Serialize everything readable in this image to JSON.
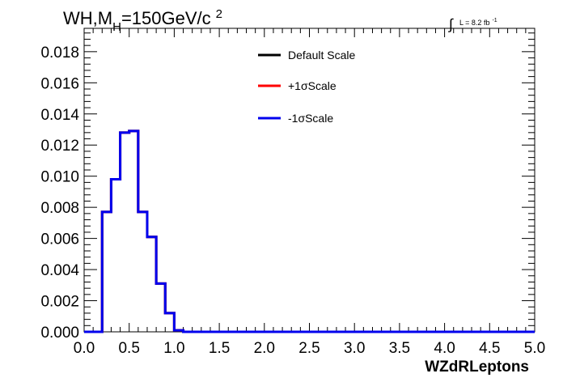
{
  "chart_data": {
    "type": "line",
    "title": {
      "main": "WH,M",
      "sub": "H",
      "rest": "=150GeV/c",
      "sup": "2"
    },
    "lumi": {
      "integral": "∫",
      "text": "L = 8.2 fb",
      "sup": "-1"
    },
    "xlabel": "WZdRLeptons",
    "ylabel": "",
    "xlim": [
      0.0,
      5.0
    ],
    "ylim": [
      0.0,
      0.0195
    ],
    "x_ticks": [
      "0.0",
      "0.5",
      "1.0",
      "1.5",
      "2.0",
      "2.5",
      "3.0",
      "3.5",
      "4.0",
      "4.5",
      "5.0"
    ],
    "y_ticks": [
      "0.000",
      "0.002",
      "0.004",
      "0.006",
      "0.008",
      "0.010",
      "0.012",
      "0.014",
      "0.016",
      "0.018"
    ],
    "grid": false,
    "legend_position": "top-center",
    "bin_width": 0.1,
    "bin_edges_start": 0.0,
    "series": [
      {
        "name": "Default Scale",
        "color": "#000000",
        "values": [
          0,
          0,
          0.0077,
          0.0098,
          0.0128,
          0.0129,
          0.0077,
          0.0061,
          0.0031,
          0.0012,
          0.0001,
          0,
          0,
          0,
          0,
          0,
          0,
          0,
          0,
          0,
          0,
          0,
          0,
          0,
          0,
          0,
          0,
          0,
          0,
          0,
          0,
          0,
          0,
          0,
          0,
          0,
          0,
          0,
          0,
          0,
          0,
          0,
          0,
          0,
          0,
          0,
          0,
          0,
          0,
          0
        ]
      },
      {
        "name": "+1σScale",
        "color": "#ff0000",
        "values": [
          0,
          0,
          0.0077,
          0.0098,
          0.0128,
          0.0129,
          0.0077,
          0.0061,
          0.0031,
          0.0012,
          0.0001,
          0,
          0,
          0,
          0,
          0,
          0,
          0,
          0,
          0,
          0,
          0,
          0,
          0,
          0,
          0,
          0,
          0,
          0,
          0,
          0,
          0,
          0,
          0,
          0,
          0,
          0,
          0,
          0,
          0,
          0,
          0,
          0,
          0,
          0,
          0,
          0,
          0,
          0,
          0
        ]
      },
      {
        "name": "-1σScale",
        "color": "#0000ee",
        "values": [
          0,
          0,
          0.0077,
          0.0098,
          0.0128,
          0.0129,
          0.0077,
          0.0061,
          0.0031,
          0.0012,
          0.0001,
          0,
          0,
          0,
          0,
          0,
          0,
          0,
          0,
          0,
          0,
          0,
          0,
          0,
          0,
          0,
          0,
          0,
          0,
          0,
          0,
          0,
          0,
          0,
          0,
          0,
          0,
          0,
          0,
          0,
          0,
          0,
          0,
          0,
          0,
          0,
          0,
          0,
          0,
          0
        ]
      }
    ]
  }
}
